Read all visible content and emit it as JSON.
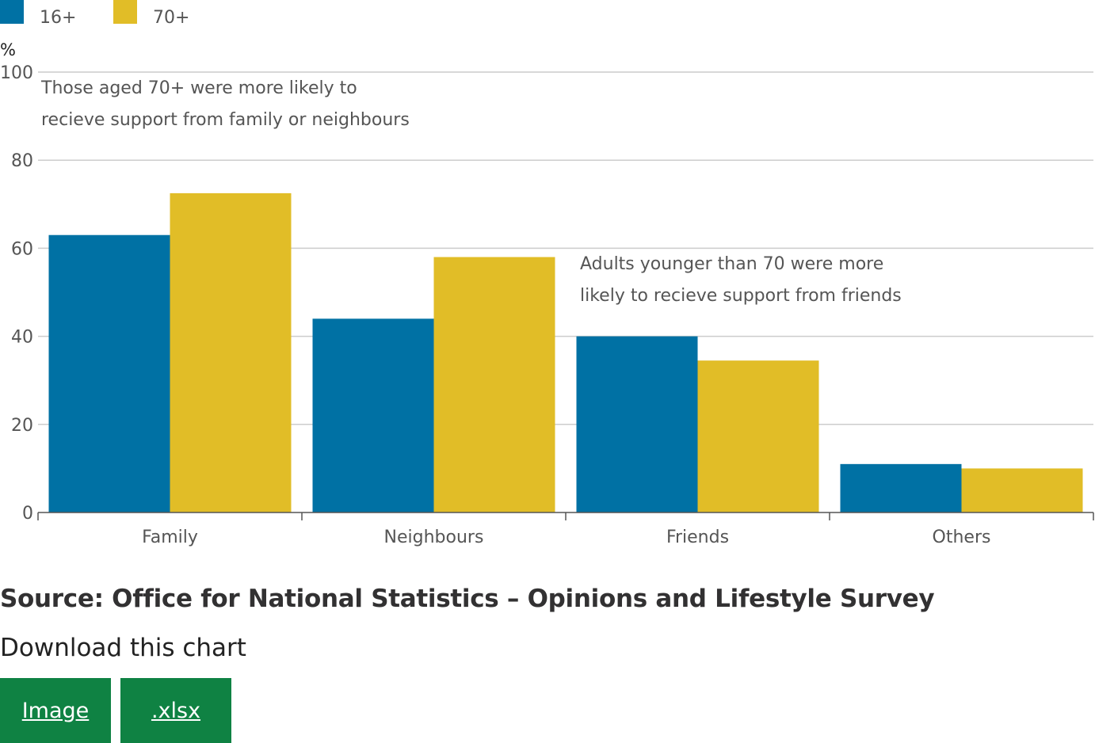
{
  "chart_data": {
    "type": "bar",
    "categories": [
      "Family",
      "Neighbours",
      "Friends",
      "Others"
    ],
    "series": [
      {
        "name": "16+",
        "color": "#0071a4",
        "values": [
          63,
          44,
          40,
          11
        ]
      },
      {
        "name": "70+",
        "color": "#e1bd27",
        "values": [
          72.5,
          58,
          34.5,
          10
        ]
      }
    ],
    "ylabel": "%",
    "ylim": [
      0,
      100
    ],
    "yticks": [
      0,
      20,
      40,
      60,
      80,
      100
    ],
    "grid": true,
    "legend": "top-left",
    "annotations": [
      {
        "lines": [
          "Those aged 70+ were more likely to",
          "recieve support from family or neighbours"
        ]
      },
      {
        "lines": [
          "Adults younger than 70 were more",
          "likely to recieve support from friends"
        ]
      }
    ]
  },
  "source": "Source: Office for National Statistics – Opinions and Lifestyle Survey",
  "download": {
    "title": "Download this chart",
    "image_label": "Image",
    "xlsx_label": ".xlsx"
  }
}
